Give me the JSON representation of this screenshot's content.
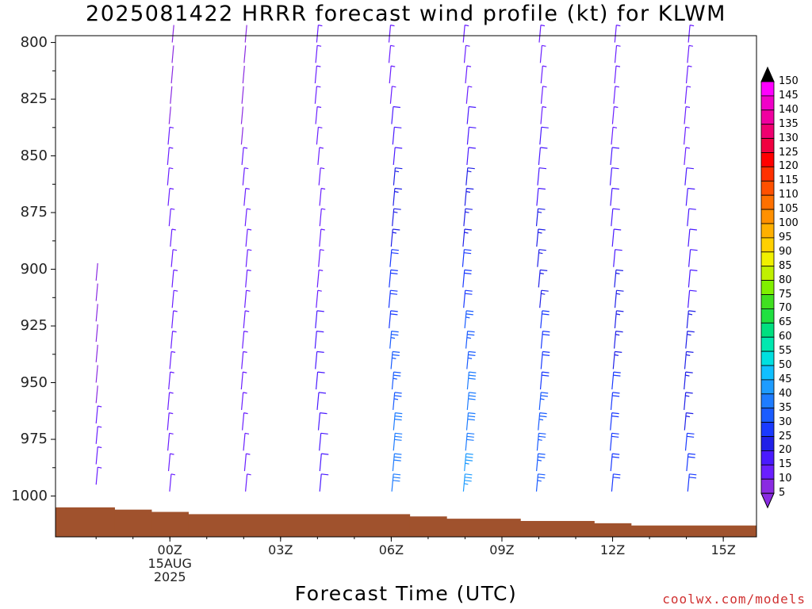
{
  "title": "2025081422 HRRR forecast wind profile (kt) for KLWM",
  "xlabel": "Forecast Time (UTC)",
  "credit": "coolwx.com/models",
  "colorbar": {
    "ticks": [
      "5",
      "10",
      "15",
      "20",
      "25",
      "30",
      "35",
      "40",
      "45",
      "50",
      "55",
      "60",
      "65",
      "70",
      "75",
      "80",
      "85",
      "90",
      "95",
      "100",
      "105",
      "110",
      "115",
      "120",
      "125",
      "130",
      "135",
      "140",
      "145",
      "150"
    ],
    "colors": [
      "#8a2be2",
      "#6a1fff",
      "#4a1aff",
      "#2020e8",
      "#1a3aff",
      "#1a5cff",
      "#1e7cff",
      "#1e9cff",
      "#10c0ff",
      "#00e0e0",
      "#00e8b0",
      "#00e080",
      "#20e040",
      "#40e020",
      "#80f000",
      "#c0f000",
      "#f0f000",
      "#ffd000",
      "#ffb000",
      "#ff9000",
      "#ff7000",
      "#ff5000",
      "#ff3000",
      "#ff0000",
      "#f00040",
      "#f00070",
      "#f000a0",
      "#f000c8",
      "#ff00ff",
      "#000000"
    ]
  },
  "chart_data": {
    "type": "wind-barb-profile",
    "title": "2025081422 HRRR forecast wind profile (kt) for KLWM",
    "xlabel": "Forecast Time (UTC)",
    "ylabel": "",
    "x_ticks": [
      {
        "hour": 2,
        "lines": [
          "00Z",
          "15AUG",
          "2025"
        ]
      },
      {
        "hour": 5,
        "lines": [
          "03Z"
        ]
      },
      {
        "hour": 8,
        "lines": [
          "06Z"
        ]
      },
      {
        "hour": 11,
        "lines": [
          "09Z"
        ]
      },
      {
        "hour": 14,
        "lines": [
          "12Z"
        ]
      },
      {
        "hour": 17,
        "lines": [
          "15Z"
        ]
      }
    ],
    "x_range_hours": [
      -1.1,
      17.9
    ],
    "y_ticks": [
      800,
      825,
      850,
      875,
      900,
      925,
      950,
      975,
      1000
    ],
    "ylim": [
      797,
      1018
    ],
    "columns": [
      {
        "hour": 0,
        "speed_top": 0,
        "speed_bottom": 6,
        "top_level": 905
      },
      {
        "hour": 2,
        "speed_top": 4,
        "speed_bottom": 9,
        "top_level": 800
      },
      {
        "hour": 4,
        "speed_top": 4,
        "speed_bottom": 8,
        "top_level": 800
      },
      {
        "hour": 6,
        "speed_top": 7,
        "speed_bottom": 12,
        "top_level": 800
      },
      {
        "hour": 8,
        "speed_top": 6,
        "speed_bottom": 35,
        "top_level": 800
      },
      {
        "hour": 10,
        "speed_top": 5,
        "speed_bottom": 38,
        "top_level": 800
      },
      {
        "hour": 12,
        "speed_top": 5,
        "speed_bottom": 30,
        "top_level": 800
      },
      {
        "hour": 14,
        "speed_top": 5,
        "speed_bottom": 25,
        "top_level": 800
      },
      {
        "hour": 16,
        "speed_top": 5,
        "speed_bottom": 22,
        "top_level": 800
      }
    ],
    "terrain": [
      {
        "from": -1.1,
        "to": 0.5,
        "level": 1005
      },
      {
        "from": 0.5,
        "to": 1.5,
        "level": 1006
      },
      {
        "from": 1.5,
        "to": 2.5,
        "level": 1007
      },
      {
        "from": 2.5,
        "to": 8.5,
        "level": 1008
      },
      {
        "from": 8.5,
        "to": 9.5,
        "level": 1009
      },
      {
        "from": 9.5,
        "to": 11.5,
        "level": 1010
      },
      {
        "from": 11.5,
        "to": 13.5,
        "level": 1011
      },
      {
        "from": 13.5,
        "to": 14.5,
        "level": 1012
      },
      {
        "from": 14.5,
        "to": 17.9,
        "level": 1013
      }
    ],
    "legend": "colorbar-right",
    "grid": false
  }
}
